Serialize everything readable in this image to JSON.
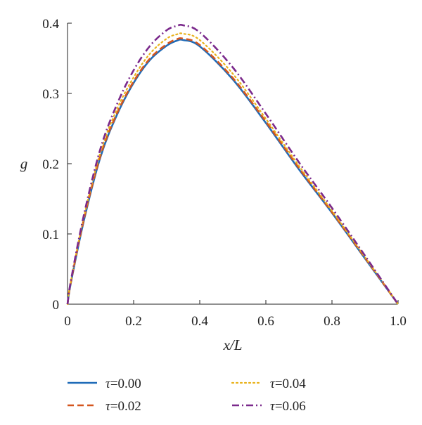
{
  "chart_data": {
    "type": "line",
    "xlabel": "x/L",
    "ylabel": "g",
    "xlim": [
      0,
      1.0
    ],
    "ylim": [
      0,
      0.4
    ],
    "xticks": [
      "0",
      "0.2",
      "0.4",
      "0.6",
      "0.8",
      "1.0"
    ],
    "yticks": [
      "0",
      "0.1",
      "0.2",
      "0.3",
      "0.4"
    ],
    "grid": false,
    "legend_position": "bottom",
    "x": [
      0,
      0.01,
      0.05,
      0.1,
      0.15,
      0.2,
      0.25,
      0.3,
      0.33,
      0.35,
      0.4,
      0.5,
      0.6,
      0.7,
      0.8,
      0.9,
      1.0
    ],
    "series": [
      {
        "name": "τ=0.00",
        "label_symbol": "τ",
        "label_value": "=0.00",
        "color": "#1f6bb8",
        "dash": "solid",
        "values": [
          0,
          0.03,
          0.12,
          0.21,
          0.27,
          0.315,
          0.348,
          0.368,
          0.375,
          0.376,
          0.367,
          0.32,
          0.258,
          0.192,
          0.13,
          0.065,
          0
        ]
      },
      {
        "name": "τ=0.02",
        "label_symbol": "τ",
        "label_value": "=0.02",
        "color": "#d4561e",
        "dash": "dashed",
        "values": [
          0,
          0.031,
          0.122,
          0.212,
          0.272,
          0.317,
          0.35,
          0.37,
          0.377,
          0.378,
          0.369,
          0.322,
          0.26,
          0.194,
          0.131,
          0.066,
          0
        ]
      },
      {
        "name": "τ=0.04",
        "label_symbol": "τ",
        "label_value": "=0.04",
        "color": "#e9b21c",
        "dash": "dotted",
        "values": [
          0,
          0.032,
          0.125,
          0.217,
          0.278,
          0.323,
          0.357,
          0.378,
          0.384,
          0.385,
          0.376,
          0.328,
          0.264,
          0.197,
          0.133,
          0.067,
          0
        ]
      },
      {
        "name": "τ=0.06",
        "label_symbol": "τ",
        "label_value": "=0.06",
        "color": "#7b2a8c",
        "dash": "dashdot",
        "values": [
          0,
          0.033,
          0.128,
          0.222,
          0.285,
          0.333,
          0.368,
          0.39,
          0.396,
          0.397,
          0.387,
          0.337,
          0.271,
          0.202,
          0.137,
          0.069,
          0
        ]
      }
    ]
  }
}
